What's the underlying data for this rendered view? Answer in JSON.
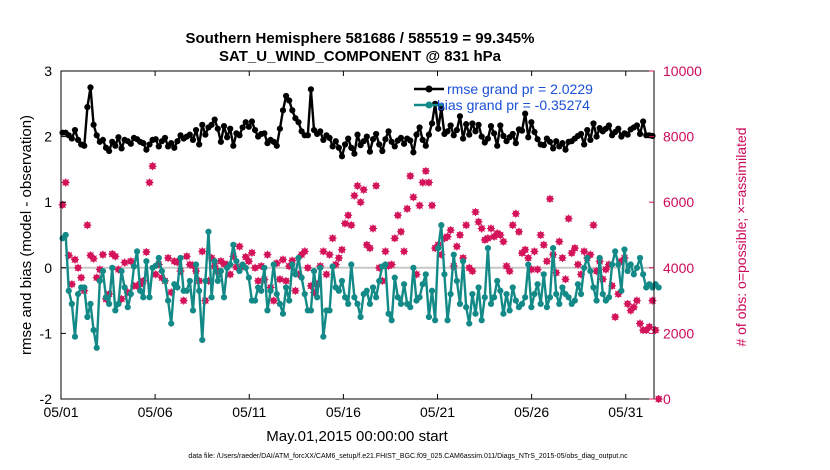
{
  "chart_data": {
    "type": "line",
    "title_line1": "Southern Hemisphere 581686 / 585519 = 99.345%",
    "title_line2": "SAT_U_WIND_COMPONENT @ 831 hPa",
    "xlabel": "May.01,2015 00:00:00 start",
    "ylabel_left": "rmse and bias (model - observation)",
    "ylabel_right": "# of obs: o=possible; ×=assimilated",
    "footnote": "data file: /Users/raeder/DAI/ATM_forcXX/CAM6_setup/f.e21.FHIST_BGC.f09_025.CAM6assim.011/Diags_NTrS_2015-05/obs_diag_output.nc",
    "x_ticks": [
      "05/01",
      "05/06",
      "05/11",
      "05/16",
      "05/21",
      "05/26",
      "05/31"
    ],
    "y_ticks_left": [
      "3",
      "2",
      "1",
      "0",
      "-1",
      "-2"
    ],
    "y_ticks_right": [
      "10000",
      "8000",
      "6000",
      "4000",
      "2000",
      "0"
    ],
    "xlim_days": [
      0,
      31.5
    ],
    "ylim_left": [
      -2,
      3
    ],
    "ylim_right": [
      0,
      10000
    ],
    "colors": {
      "rmse": "#000000",
      "bias": "#138a87",
      "obs": "#d4145a",
      "legend_text": "#1a4fd6",
      "zero_line": "#c8c8c8"
    },
    "series": [
      {
        "name": "rmse",
        "legend": "rmse grand pr = 2.0229",
        "values": [
          2.06,
          2.06,
          2.02,
          1.97,
          2.1,
          1.95,
          1.88,
          1.86,
          2.45,
          2.75,
          2.18,
          2.02,
          1.92,
          1.95,
          1.83,
          1.78,
          1.92,
          1.86,
          1.99,
          1.82,
          1.95,
          1.93,
          1.89,
          1.98,
          1.96,
          1.92,
          1.9,
          1.8,
          1.88,
          1.95,
          1.96,
          1.85,
          1.93,
          1.98,
          1.85,
          1.9,
          1.83,
          1.93,
          2.02,
          1.97,
          2.0,
          2.03,
          1.95,
          2.1,
          1.88,
          2.18,
          2.03,
          2.14,
          2.18,
          2.26,
          2.12,
          1.92,
          2.16,
          1.99,
          2.12,
          1.86,
          2.05,
          2.02,
          2.14,
          2.22,
          2.15,
          2.23,
          2.1,
          2.0,
          2.04,
          2.05,
          1.9,
          1.95,
          1.92,
          1.86,
          2.12,
          2.4,
          2.62,
          2.55,
          2.4,
          2.28,
          2.22,
          2.08,
          2.02,
          2.02,
          2.72,
          2.1,
          2.04,
          2.08,
          1.95,
          2.02,
          1.98,
          1.85,
          1.93,
          1.83,
          1.7,
          1.88,
          1.97,
          1.83,
          1.74,
          2.03,
          1.87,
          1.93,
          2.0,
          1.77,
          1.96,
          2.04,
          1.88,
          1.78,
          1.96,
          2.08,
          1.92,
          1.85,
          1.94,
          1.98,
          1.89,
          1.97,
          1.94,
          1.76,
          2.03,
          2.14,
          1.95,
          1.86,
          2.03,
          2.2,
          2.5,
          2.12,
          2.43,
          2.04,
          2.08,
          2.17,
          2.02,
          2.1,
          2.31,
          1.97,
          2.19,
          2.03,
          2.2,
          2.08,
          2.18,
          2.0,
          1.91,
          1.97,
          2.16,
          2.05,
          1.86,
          2.17,
          2.01,
          1.93,
          1.99,
          2.04,
          1.9,
          2.11,
          2.09,
          2.35,
          1.99,
          2.22,
          2.07,
          1.96,
          1.88,
          1.87,
          1.97,
          1.92,
          1.82,
          1.93,
          1.85,
          1.9,
          1.8,
          1.92,
          1.93,
          1.97,
          2.01,
          2.04,
          1.88,
          2.1,
          1.95,
          2.2,
          2.0,
          2.13,
          2.08,
          2.12,
          2.17,
          2.02,
          2.07,
          2.12,
          2.0,
          2.05,
          2.03,
          2.11,
          2.14,
          2.17,
          2.04,
          2.23,
          2.02,
          2.02,
          2.01
        ]
      },
      {
        "name": "bias",
        "legend": "bias grand pr = -0.35274",
        "values": [
          0.45,
          0.5,
          -0.35,
          -0.55,
          -1.05,
          -0.4,
          -0.3,
          -0.3,
          -0.75,
          -0.55,
          -0.95,
          -1.22,
          -0.2,
          -0.05,
          -0.45,
          -0.55,
          0.0,
          -0.65,
          -0.55,
          -0.05,
          -0.3,
          -0.6,
          -0.4,
          0.02,
          0.25,
          -0.35,
          -0.45,
          0.1,
          -0.45,
          0.0,
          0.03,
          0.15,
          -0.05,
          -0.2,
          -0.5,
          -0.85,
          -0.25,
          -0.3,
          0.15,
          -0.35,
          -0.35,
          -0.2,
          -0.65,
          0.05,
          -0.35,
          -1.1,
          -0.2,
          0.55,
          -0.45,
          0.1,
          -0.2,
          -0.05,
          -0.45,
          0.0,
          0.05,
          0.35,
          0.1,
          -0.05,
          0.05,
          0.0,
          -0.15,
          -0.5,
          -0.5,
          -0.3,
          -0.35,
          0.0,
          -0.65,
          -0.35,
          0.05,
          -0.4,
          -0.55,
          -0.7,
          -0.3,
          -0.5,
          0.05,
          -0.1,
          0.15,
          -0.15,
          -0.4,
          -0.65,
          -0.65,
          -0.05,
          -0.45,
          0.0,
          -1.05,
          -0.65,
          -0.65,
          0.02,
          -0.3,
          -0.35,
          -0.2,
          -0.45,
          -0.55,
          0.05,
          -0.45,
          -0.55,
          -0.75,
          -0.4,
          -0.35,
          -0.55,
          -0.3,
          -0.45,
          -0.2,
          0.02,
          0.05,
          -0.7,
          -0.8,
          -0.15,
          -0.45,
          -0.55,
          -0.25,
          -0.55,
          -0.6,
          0.0,
          -0.5,
          -0.45,
          -0.25,
          -0.1,
          -0.75,
          -0.35,
          -0.8,
          0.3,
          0.65,
          -0.1,
          -0.8,
          -0.4,
          0.2,
          -0.2,
          -0.55,
          0.1,
          -0.6,
          -0.85,
          -0.4,
          -0.7,
          -0.3,
          -0.8,
          -0.45,
          0.3,
          -0.55,
          -0.45,
          -0.2,
          -0.35,
          -0.7,
          -0.4,
          -0.65,
          -0.3,
          -0.5,
          -0.6,
          -0.55,
          -0.45,
          0.05,
          -0.6,
          -0.4,
          -0.25,
          -0.55,
          -0.1,
          -0.6,
          -0.45,
          0.3,
          -0.4,
          -0.55,
          -0.3,
          -0.4,
          -0.45,
          -0.55,
          -0.5,
          -0.25,
          -0.4,
          0.0,
          0.15,
          -0.05,
          -0.3,
          -0.5,
          0.15,
          -0.4,
          -0.5,
          -0.45,
          0.05,
          0.25,
          0.05,
          -0.35,
          0.28,
          -0.05,
          0.05,
          -0.1,
          0.0,
          0.15,
          -0.1,
          -0.3,
          -0.25,
          -0.3,
          -0.25,
          -0.3
        ]
      },
      {
        "name": "obs_assimilated",
        "axis": "right",
        "values": [
          5920,
          6600,
          4380,
          3500,
          4250,
          4000,
          3700,
          3300,
          5300,
          4380,
          4280,
          3700,
          3950,
          4400,
          3050,
          3200,
          4420,
          4350,
          3950,
          3050,
          4160,
          3250,
          4200,
          3450,
          3450,
          3500,
          3600,
          4480,
          6600,
          7100,
          3800,
          4100,
          3700,
          3600,
          4300,
          3250,
          4200,
          4170,
          3900,
          3000,
          4350,
          4100,
          4070,
          3900,
          3600,
          4500,
          3000,
          3600,
          4300,
          4050,
          3900,
          4200,
          4120,
          4100,
          3800,
          4350,
          4020,
          4650,
          4050,
          4330,
          4200,
          4460,
          4000,
          3600,
          4050,
          3640,
          4400,
          3400,
          3000,
          4140,
          3650,
          4250,
          3600,
          4050,
          4220,
          3300,
          3800,
          4400,
          4500,
          4000,
          3450,
          3250,
          3500,
          4050,
          4500,
          3800,
          4400,
          4900,
          4100,
          4300,
          4550,
          5350,
          5600,
          5300,
          6200,
          6500,
          6000,
          6380,
          4700,
          4600,
          5200,
          6500,
          4000,
          3600,
          4500,
          4060,
          4100,
          4900,
          5600,
          5100,
          4500,
          5800,
          6800,
          6150,
          3800,
          5900,
          6600,
          6950,
          6600,
          5900,
          4600,
          4700,
          4400,
          4900,
          4950,
          5150,
          4050,
          4650,
          5000,
          4300,
          5300,
          4000,
          3900,
          5700,
          5400,
          5200,
          4850,
          4900,
          5200,
          4950,
          5050,
          5000,
          4800,
          4050,
          3900,
          5300,
          5650,
          5100,
          4450,
          4550,
          4300,
          3950,
          4500,
          3950,
          5000,
          4700,
          4200,
          6100,
          4400,
          3850,
          4800,
          4300,
          3650,
          5500,
          4450,
          4600,
          4100,
          3800,
          4500,
          4300,
          4400,
          5300,
          3900,
          4200,
          3650,
          3950,
          4100,
          3450,
          2500,
          3200,
          4200,
          4300,
          2900,
          2700,
          2800,
          3000,
          2300,
          2100,
          2100,
          2200,
          3000,
          2100,
          0
        ]
      }
    ]
  }
}
